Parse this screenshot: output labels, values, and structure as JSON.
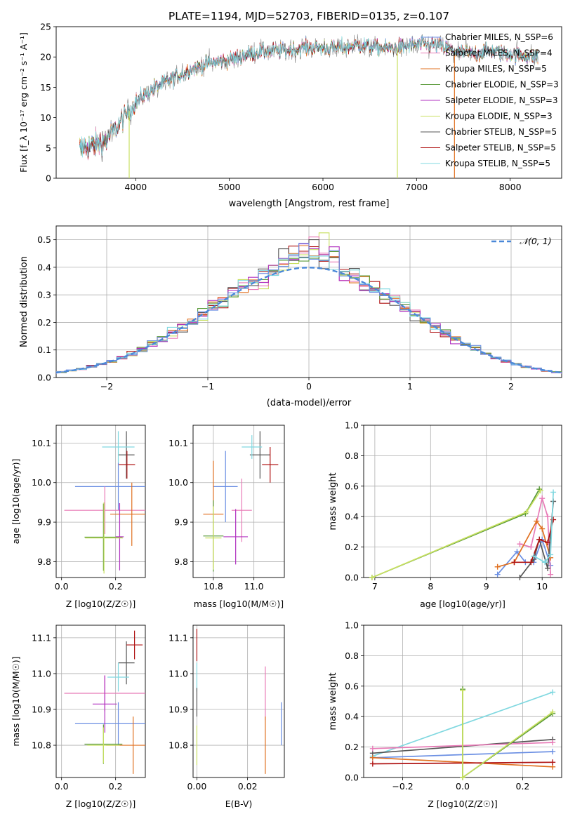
{
  "figure_title": "PLATE=1194, MJD=52703, FIBERID=0135, z=0.107",
  "colors": {
    "chabrier_miles": "#6b8fe3",
    "salpeter_miles": "#e87bb7",
    "kroupa_miles": "#e07020",
    "chabrier_elodie": "#5a9a3a",
    "salpeter_elodie": "#b030c0",
    "kroupa_elodie": "#c8e060",
    "chabrier_stelib": "#555555",
    "salpeter_stelib": "#b01515",
    "kroupa_stelib": "#80d8e0",
    "extra_gray": "#888888",
    "normal_curve": "#4a88d8"
  },
  "chart_data": [
    {
      "id": "spectrum",
      "type": "line",
      "title": "PLATE=1194, MJD=52703, FIBERID=0135, z=0.107",
      "xlabel": "wavelength [Angstrom, rest frame]",
      "ylabel": "Flux [f_λ 10⁻¹⁷ erg cm⁻² s⁻¹ A⁻¹]",
      "xlim": [
        3150,
        8550
      ],
      "ylim": [
        0,
        25
      ],
      "xticks": [
        4000,
        5000,
        6000,
        7000,
        8000
      ],
      "yticks": [
        0,
        5,
        10,
        15,
        20,
        25
      ],
      "grid": false,
      "legend_position": "top-right",
      "legend": [
        "Chabrier MILES, N_SSP=6",
        "Salpeter MILES, N_SSP=4",
        "Kroupa MILES, N_SSP=5",
        "Chabrier ELODIE, N_SSP=3",
        "Salpeter ELODIE, N_SSP=3",
        "Kroupa ELODIE, N_SSP=3",
        "Chabrier STELIB, N_SSP=5",
        "Salpeter STELIB, N_SSP=5",
        "Kroupa STELIB, N_SSP=5"
      ],
      "continuum": {
        "x": [
          3400,
          3550,
          3700,
          3800,
          3900,
          4000,
          4200,
          4400,
          4600,
          4800,
          5000,
          5200,
          5400,
          5600,
          5800,
          6000,
          6200,
          6400,
          6600,
          6800,
          7000,
          7200,
          7400,
          7600,
          7800,
          8000,
          8300
        ],
        "y": [
          5,
          5.5,
          6.5,
          8.5,
          10.5,
          12.5,
          15,
          16.5,
          18,
          19,
          19.5,
          20.5,
          21,
          21,
          21.5,
          21.5,
          21.5,
          22,
          21.5,
          21.5,
          22,
          22,
          21,
          20.5,
          21,
          20.5,
          20
        ]
      },
      "dropouts": [
        {
          "x": 3930,
          "y_min": 0,
          "series": "kroupa_elodie"
        },
        {
          "x": 6795,
          "y_min": 0,
          "series": "kroupa_elodie"
        },
        {
          "x": 7405,
          "y_min": 0,
          "series": "kroupa_miles"
        }
      ]
    },
    {
      "id": "residuals",
      "type": "histogram",
      "xlabel": "(data-model)/error",
      "ylabel": "Normed distribution",
      "xlim": [
        -2.5,
        2.5
      ],
      "ylim": [
        0,
        0.55
      ],
      "xticks": [
        -2,
        -1,
        0,
        1,
        2
      ],
      "yticks": [
        0.0,
        0.1,
        0.2,
        0.3,
        0.4,
        0.5
      ],
      "grid": true,
      "legend_position": "top-right",
      "legend": [
        "𝒩(0, 1)"
      ],
      "bin_width": 0.1,
      "highlighted_peaks": [
        {
          "series": "kroupa_elodie",
          "x": 0.15,
          "y": 0.525
        },
        {
          "series": "salpeter_miles",
          "x": 0.05,
          "y": 0.51
        },
        {
          "series": "chabrier_stelib",
          "x": 0.05,
          "y": 0.5
        },
        {
          "series": "salpeter_stelib",
          "x": 0.05,
          "y": 0.475
        }
      ]
    },
    {
      "id": "age_vs_Z",
      "type": "scatter_errorbar",
      "xlabel": "Z [log10(Z/Z☉)]",
      "ylabel": "age [log10(age/yr)]",
      "xlim": [
        -0.02,
        0.31
      ],
      "ylim": [
        9.76,
        10.145
      ],
      "xticks": [
        0.0,
        0.2
      ],
      "yticks": [
        9.8,
        9.9,
        10.0,
        10.1
      ],
      "grid": true,
      "points": [
        {
          "series": "chabrier_miles",
          "x": 0.21,
          "xerr": 0.16,
          "y": 9.99,
          "yerr": 0.06
        },
        {
          "series": "salpeter_miles",
          "x": 0.16,
          "xerr": 0.15,
          "y": 9.93,
          "yerr": 0.06
        },
        {
          "series": "kroupa_miles",
          "x": 0.26,
          "xerr": 0.08,
          "y": 9.92,
          "yerr": 0.08
        },
        {
          "series": "chabrier_elodie",
          "x": 0.155,
          "xerr": 0.07,
          "y": 9.862,
          "yerr": 0.085
        },
        {
          "series": "salpeter_elodie",
          "x": 0.215,
          "xerr": 0.015,
          "y": 9.863,
          "yerr": 0.085
        },
        {
          "series": "kroupa_elodie",
          "x": 0.157,
          "xerr": 0.07,
          "y": 9.86,
          "yerr": 0.09
        },
        {
          "series": "chabrier_stelib",
          "x": 0.24,
          "xerr": 0.03,
          "y": 10.07,
          "yerr": 0.06
        },
        {
          "series": "salpeter_stelib",
          "x": 0.242,
          "xerr": 0.03,
          "y": 10.045,
          "yerr": 0.035
        },
        {
          "series": "kroupa_stelib",
          "x": 0.21,
          "xerr": 0.06,
          "y": 10.09,
          "yerr": 0.04
        }
      ]
    },
    {
      "id": "age_vs_mass",
      "type": "scatter_errorbar",
      "xlabel": "mass [log10(M/M☉)]",
      "ylabel": "",
      "xlim": [
        10.7,
        11.15
      ],
      "ylim": [
        9.76,
        10.145
      ],
      "xticks": [
        10.8,
        11.0
      ],
      "yticks": [
        9.8,
        9.9,
        10.0,
        10.1
      ],
      "grid": true,
      "points": [
        {
          "series": "chabrier_miles",
          "x": 10.86,
          "xerr": 0.06,
          "y": 9.99,
          "yerr": 0.09
        },
        {
          "series": "salpeter_miles",
          "x": 10.94,
          "xerr": 0.05,
          "y": 9.93,
          "yerr": 0.08
        },
        {
          "series": "kroupa_miles",
          "x": 10.8,
          "xerr": 0.05,
          "y": 9.92,
          "yerr": 0.135
        },
        {
          "series": "chabrier_elodie",
          "x": 10.8,
          "xerr": 0.05,
          "y": 9.865,
          "yerr": 0.09
        },
        {
          "series": "salpeter_elodie",
          "x": 10.91,
          "xerr": 0.06,
          "y": 9.863,
          "yerr": 0.07
        },
        {
          "series": "kroupa_elodie",
          "x": 10.8,
          "xerr": 0.04,
          "y": 9.86,
          "yerr": 0.08
        },
        {
          "series": "chabrier_stelib",
          "x": 11.03,
          "xerr": 0.05,
          "y": 10.07,
          "yerr": 0.06
        },
        {
          "series": "salpeter_stelib",
          "x": 11.08,
          "xerr": 0.04,
          "y": 10.045,
          "yerr": 0.045
        },
        {
          "series": "kroupa_stelib",
          "x": 10.99,
          "xerr": 0.05,
          "y": 10.09,
          "yerr": 0.03
        }
      ]
    },
    {
      "id": "weight_vs_age",
      "type": "line",
      "xlabel": "age [log10(age/yr)]",
      "ylabel": "mass weight",
      "xlim": [
        6.8,
        10.35
      ],
      "ylim": [
        0,
        1.0
      ],
      "xticks": [
        7,
        8,
        9,
        10
      ],
      "yticks": [
        0.0,
        0.2,
        0.4,
        0.6,
        0.8,
        1.0
      ],
      "grid": true,
      "series": [
        {
          "key": "chabrier_elodie",
          "x": [
            6.95,
            9.7,
            9.95
          ],
          "y": [
            0.0,
            0.42,
            0.58
          ]
        },
        {
          "key": "kroupa_elodie",
          "x": [
            6.95,
            9.72,
            9.97
          ],
          "y": [
            0.0,
            0.43,
            0.57
          ]
        },
        {
          "key": "chabrier_miles",
          "x": [
            9.2,
            9.55,
            9.7,
            9.85,
            10.0,
            10.15
          ],
          "y": [
            0.02,
            0.17,
            0.1,
            0.1,
            0.25,
            0.08
          ]
        },
        {
          "key": "salpeter_miles",
          "x": [
            9.6,
            9.8,
            10.0,
            10.1,
            10.15
          ],
          "y": [
            0.22,
            0.2,
            0.52,
            0.4,
            0.02
          ]
        },
        {
          "key": "kroupa_miles",
          "x": [
            9.2,
            9.5,
            9.9,
            10.0,
            10.15
          ],
          "y": [
            0.07,
            0.1,
            0.37,
            0.32,
            0.13
          ]
        },
        {
          "key": "chabrier_stelib",
          "x": [
            9.6,
            9.85,
            9.95,
            10.1,
            10.2
          ],
          "y": [
            0.0,
            0.12,
            0.25,
            0.06,
            0.5
          ]
        },
        {
          "key": "salpeter_stelib",
          "x": [
            9.5,
            9.8,
            9.95,
            10.1,
            10.2
          ],
          "y": [
            0.1,
            0.1,
            0.25,
            0.23,
            0.38
          ]
        },
        {
          "key": "kroupa_stelib",
          "x": [
            9.85,
            10.05,
            10.15,
            10.2
          ],
          "y": [
            0.14,
            0.1,
            0.15,
            0.56
          ]
        }
      ]
    },
    {
      "id": "mass_vs_Z",
      "type": "scatter_errorbar",
      "xlabel": "Z [log10(Z/Z☉)]",
      "ylabel": "mass [log10(M/M☉)]",
      "xlim": [
        -0.02,
        0.31
      ],
      "ylim": [
        10.71,
        11.135
      ],
      "xticks": [
        0.0,
        0.2
      ],
      "yticks": [
        10.8,
        10.9,
        11.0,
        11.1
      ],
      "grid": true,
      "points": [
        {
          "series": "chabrier_miles",
          "x": 0.21,
          "xerr": 0.16,
          "y": 10.86,
          "yerr": 0.06
        },
        {
          "series": "salpeter_miles",
          "x": 0.16,
          "xerr": 0.15,
          "y": 10.945,
          "yerr": 0.05
        },
        {
          "series": "kroupa_miles",
          "x": 0.265,
          "xerr": 0.1,
          "y": 10.8,
          "yerr": 0.08
        },
        {
          "series": "chabrier_elodie",
          "x": 0.155,
          "xerr": 0.07,
          "y": 10.803,
          "yerr": 0.055
        },
        {
          "series": "salpeter_elodie",
          "x": 0.16,
          "xerr": 0.045,
          "y": 10.915,
          "yerr": 0.08
        },
        {
          "series": "kroupa_elodie",
          "x": 0.155,
          "xerr": 0.06,
          "y": 10.8,
          "yerr": 0.05
        },
        {
          "series": "chabrier_stelib",
          "x": 0.24,
          "xerr": 0.03,
          "y": 11.03,
          "yerr": 0.06
        },
        {
          "series": "salpeter_stelib",
          "x": 0.27,
          "xerr": 0.03,
          "y": 11.08,
          "yerr": 0.04
        },
        {
          "series": "kroupa_stelib",
          "x": 0.21,
          "xerr": 0.04,
          "y": 10.99,
          "yerr": 0.04
        }
      ]
    },
    {
      "id": "mass_vs_ebv",
      "type": "scatter_errorbar",
      "xlabel": "E(B-V)",
      "ylabel": "",
      "xlim": [
        -0.0015,
        0.0345
      ],
      "ylim": [
        10.71,
        11.135
      ],
      "xticks": [
        0.0,
        0.02
      ],
      "yticks": [
        10.8,
        10.9,
        11.0,
        11.1
      ],
      "grid": true,
      "points": [
        {
          "series": "chabrier_miles",
          "x": 0.0333,
          "y": 10.86,
          "yerr": 0.06
        },
        {
          "series": "salpeter_miles",
          "x": 0.027,
          "y": 10.945,
          "yerr": 0.075
        },
        {
          "series": "kroupa_miles",
          "x": 0.027,
          "y": 10.8,
          "yerr": 0.08
        },
        {
          "series": "kroupa_elodie",
          "x": 0.0,
          "y": 10.8,
          "yerr": 0.055
        },
        {
          "series": "salpeter_stelib",
          "x": 0.0,
          "y": 11.08,
          "yerr": 0.045
        },
        {
          "series": "kroupa_stelib",
          "x": 0.0,
          "y": 10.99,
          "yerr": 0.04
        },
        {
          "series": "chabrier_stelib",
          "x": 0.0,
          "y": 10.92,
          "yerr": 0.04
        }
      ]
    },
    {
      "id": "weight_vs_Z",
      "type": "line",
      "xlabel": "Z [log10(Z/Z☉)]",
      "ylabel": "mass weight",
      "xlim": [
        -0.33,
        0.33
      ],
      "ylim": [
        0,
        1.0
      ],
      "xticks": [
        -0.2,
        0.0,
        0.2
      ],
      "yticks": [
        0.0,
        0.2,
        0.4,
        0.6,
        0.8,
        1.0
      ],
      "grid": true,
      "series": [
        {
          "key": "kroupa_stelib",
          "x": [
            -0.3,
            0.3
          ],
          "y": [
            0.14,
            0.56
          ]
        },
        {
          "key": "chabrier_stelib",
          "x": [
            -0.3,
            0.3
          ],
          "y": [
            0.16,
            0.25
          ]
        },
        {
          "key": "chabrier_miles",
          "x": [
            -0.3,
            0.3
          ],
          "y": [
            0.13,
            0.17
          ]
        },
        {
          "key": "salpeter_miles",
          "x": [
            -0.3,
            0.3
          ],
          "y": [
            0.19,
            0.23
          ]
        },
        {
          "key": "kroupa_miles",
          "x": [
            -0.3,
            0.3
          ],
          "y": [
            0.13,
            0.07
          ]
        },
        {
          "key": "salpeter_stelib",
          "x": [
            -0.3,
            0.3
          ],
          "y": [
            0.09,
            0.1
          ]
        },
        {
          "key": "chabrier_elodie",
          "x": [
            0.0,
            0.0,
            0.3
          ],
          "y": [
            0.58,
            0.0,
            0.42
          ]
        },
        {
          "key": "kroupa_elodie",
          "x": [
            0.0,
            0.0,
            0.3
          ],
          "y": [
            0.57,
            0.0,
            0.43
          ]
        }
      ]
    }
  ]
}
